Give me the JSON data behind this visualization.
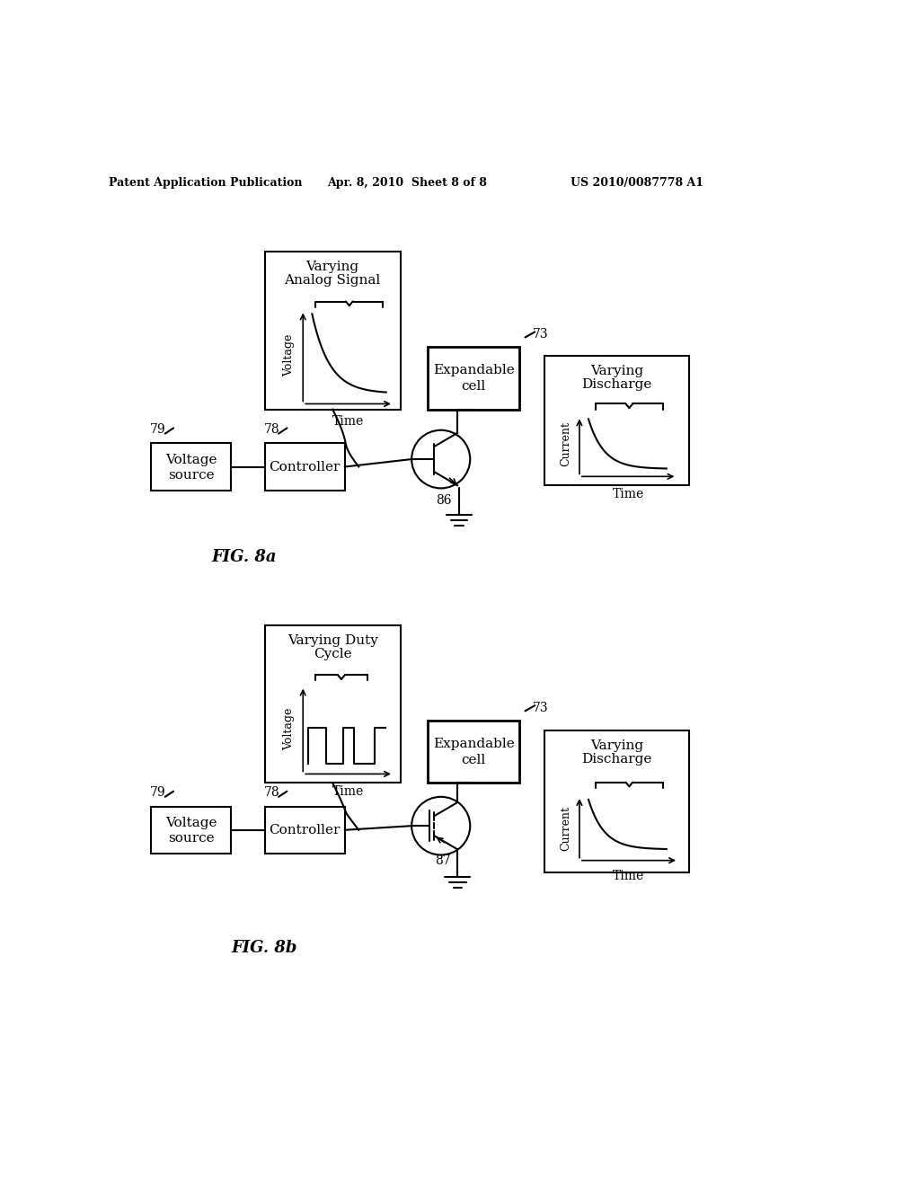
{
  "bg_color": "#ffffff",
  "header_text_left": "Patent Application Publication",
  "header_text_mid": "Apr. 8, 2010  Sheet 8 of 8",
  "header_text_right": "US 2010/0087778 A1",
  "fig8a_label": "FIG. 8a",
  "fig8b_label": "FIG. 8b",
  "label_79a": "79",
  "label_78a": "78",
  "label_73a": "73",
  "label_86": "86",
  "label_79b": "79",
  "label_78b": "78",
  "label_73b": "73",
  "label_87": "87"
}
